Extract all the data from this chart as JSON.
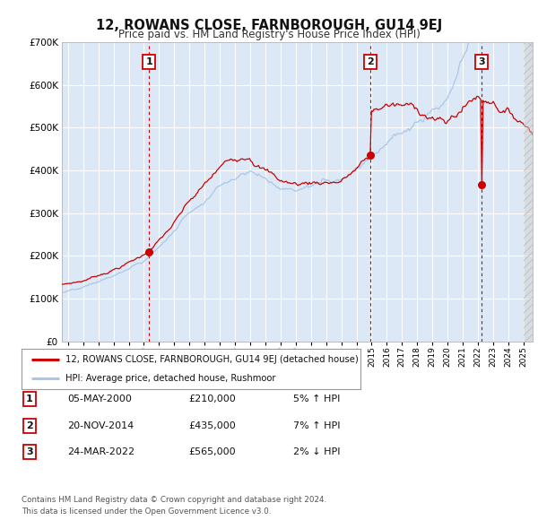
{
  "title": "12, ROWANS CLOSE, FARNBOROUGH, GU14 9EJ",
  "subtitle": "Price paid vs. HM Land Registry's House Price Index (HPI)",
  "legend_line1": "12, ROWANS CLOSE, FARNBOROUGH, GU14 9EJ (detached house)",
  "legend_line2": "HPI: Average price, detached house, Rushmoor",
  "footer1": "Contains HM Land Registry data © Crown copyright and database right 2024.",
  "footer2": "This data is licensed under the Open Government Licence v3.0.",
  "transactions": [
    {
      "num": 1,
      "date": "05-MAY-2000",
      "price": 210000,
      "pct": "5%",
      "dir": "↑",
      "year_x": 2000.35
    },
    {
      "num": 2,
      "date": "20-NOV-2014",
      "price": 435000,
      "pct": "7%",
      "dir": "↑",
      "year_x": 2014.89
    },
    {
      "num": 3,
      "date": "24-MAR-2022",
      "price": 565000,
      "pct": "2%",
      "dir": "↓",
      "year_x": 2022.22
    }
  ],
  "hpi_color": "#aac7e8",
  "price_color": "#cc0000",
  "dot_color": "#cc0000",
  "dashed_color": "#cc0000",
  "plot_bg": "#dce8f5",
  "grid_color": "#ffffff",
  "ylim": [
    0,
    700000
  ],
  "yticks": [
    0,
    100000,
    200000,
    300000,
    400000,
    500000,
    600000,
    700000
  ],
  "xlim_start": 1994.6,
  "xlim_end": 2025.6,
  "hatch_start": 2025.0,
  "xticks": [
    1995,
    1996,
    1997,
    1998,
    1999,
    2000,
    2001,
    2002,
    2003,
    2004,
    2005,
    2006,
    2007,
    2008,
    2009,
    2010,
    2011,
    2012,
    2013,
    2014,
    2015,
    2016,
    2017,
    2018,
    2019,
    2020,
    2021,
    2022,
    2023,
    2024,
    2025
  ]
}
